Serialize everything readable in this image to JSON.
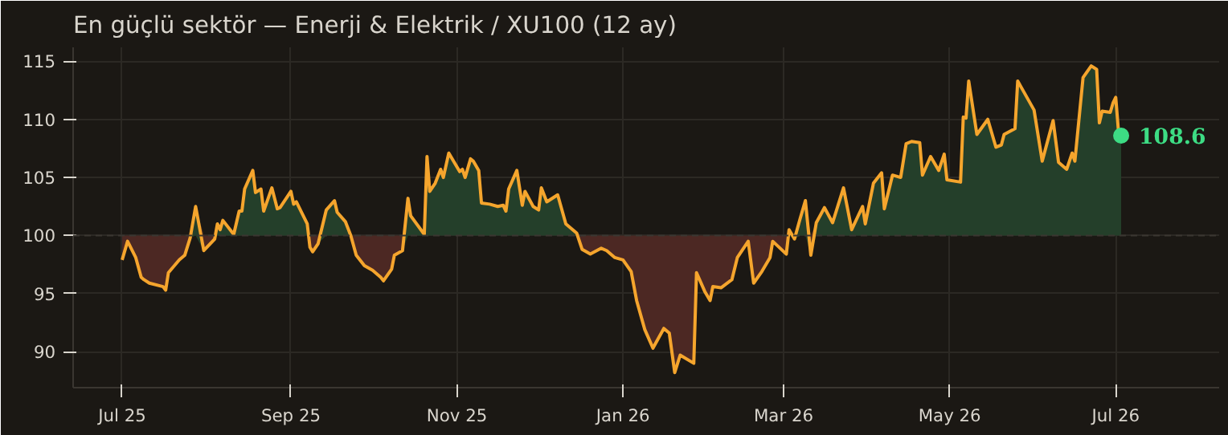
{
  "chart_data": {
    "type": "line",
    "title": "En güçlü sektör — Enerji & Elektrik / XU100 (12 ay)",
    "x": [
      "2025-07-01",
      "2025-07-03",
      "2025-07-06",
      "2025-07-08",
      "2025-07-09",
      "2025-07-11",
      "2025-07-16",
      "2025-07-17",
      "2025-07-18",
      "2025-07-22",
      "2025-07-24",
      "2025-07-26",
      "2025-07-28",
      "2025-07-31",
      "2025-08-04",
      "2025-08-05",
      "2025-08-06",
      "2025-08-07",
      "2025-08-11",
      "2025-08-13",
      "2025-08-14",
      "2025-08-15",
      "2025-08-18",
      "2025-08-19",
      "2025-08-21",
      "2025-08-22",
      "2025-08-25",
      "2025-08-27",
      "2025-08-28",
      "2025-09-01",
      "2025-09-02",
      "2025-09-03",
      "2025-09-07",
      "2025-09-08",
      "2025-09-09",
      "2025-09-11",
      "2025-09-14",
      "2025-09-17",
      "2025-09-18",
      "2025-09-21",
      "2025-09-23",
      "2025-09-25",
      "2025-09-28",
      "2025-10-01",
      "2025-10-04",
      "2025-10-05",
      "2025-10-08",
      "2025-10-09",
      "2025-10-12",
      "2025-10-14",
      "2025-10-15",
      "2025-10-20",
      "2025-10-21",
      "2025-10-22",
      "2025-10-24",
      "2025-10-26",
      "2025-10-27",
      "2025-10-29",
      "2025-11-02",
      "2025-11-03",
      "2025-11-04",
      "2025-11-06",
      "2025-11-07",
      "2025-11-09",
      "2025-11-10",
      "2025-11-13",
      "2025-11-16",
      "2025-11-18",
      "2025-11-19",
      "2025-11-20",
      "2025-11-23",
      "2025-11-25",
      "2025-11-26",
      "2025-11-29",
      "2025-12-01",
      "2025-12-02",
      "2025-12-04",
      "2025-12-08",
      "2025-12-11",
      "2025-12-15",
      "2025-12-17",
      "2025-12-20",
      "2025-12-24",
      "2025-12-26",
      "2025-12-29",
      "2026-01-01",
      "2026-01-04",
      "2026-01-06",
      "2026-01-09",
      "2026-01-12",
      "2026-01-16",
      "2026-01-18",
      "2026-01-20",
      "2026-01-22",
      "2026-01-27",
      "2026-01-28",
      "2026-01-31",
      "2026-02-02",
      "2026-02-03",
      "2026-02-06",
      "2026-02-10",
      "2026-02-12",
      "2026-02-16",
      "2026-02-18",
      "2026-02-21",
      "2026-02-24",
      "2026-02-25",
      "2026-03-02",
      "2026-03-03",
      "2026-03-05",
      "2026-03-07",
      "2026-03-09",
      "2026-03-11",
      "2026-03-13",
      "2026-03-16",
      "2026-03-19",
      "2026-03-23",
      "2026-03-26",
      "2026-03-30",
      "2026-03-31",
      "2026-04-03",
      "2026-04-06",
      "2026-04-07",
      "2026-04-10",
      "2026-04-13",
      "2026-04-15",
      "2026-04-17",
      "2026-04-20",
      "2026-04-21",
      "2026-04-24",
      "2026-04-27",
      "2026-04-29",
      "2026-04-30",
      "2026-05-05",
      "2026-05-06",
      "2026-05-07",
      "2026-05-08",
      "2026-05-11",
      "2026-05-15",
      "2026-05-18",
      "2026-05-20",
      "2026-05-21",
      "2026-05-25",
      "2026-05-26",
      "2026-06-01",
      "2026-06-04",
      "2026-06-08",
      "2026-06-10",
      "2026-06-13",
      "2026-06-15",
      "2026-06-16",
      "2026-06-19",
      "2026-06-22",
      "2026-06-24",
      "2026-06-25",
      "2026-06-26",
      "2026-06-29",
      "2026-06-30",
      "2026-07-01",
      "2026-07-02",
      "2026-07-03"
    ],
    "series": [
      {
        "color": "#f5a52d",
        "lower": [
          97.9,
          99.5,
          98.1,
          96.4,
          96.2,
          95.9,
          95.6,
          95.3,
          96.8,
          97.9,
          98.3,
          99.8,
          100,
          98.7,
          99.7,
          100,
          100,
          100,
          100,
          100,
          100,
          100,
          100,
          100,
          100,
          100,
          100,
          100,
          100,
          100,
          100,
          100,
          100,
          99.0,
          98.6,
          99.3,
          100,
          100,
          100,
          100,
          100.0,
          98.3,
          97.4,
          97.0,
          96.4,
          96.1,
          97.1,
          98.3,
          98.7,
          100,
          100,
          100,
          100,
          100,
          100,
          100,
          100,
          100,
          100,
          100,
          100,
          100,
          100,
          100,
          100,
          100,
          100,
          100,
          100,
          100,
          100,
          100,
          100,
          100,
          100,
          100,
          100,
          100,
          100,
          100,
          98.8,
          98.4,
          98.9,
          98.7,
          98.1,
          97.9,
          96.9,
          94.4,
          91.9,
          90.3,
          92.0,
          91.6,
          88.2,
          89.7,
          89.0,
          96.8,
          95.2,
          94.4,
          95.6,
          95.5,
          96.2,
          98.1,
          99.5,
          95.9,
          96.9,
          98.1,
          99.5,
          98.4,
          100,
          99.7,
          100,
          100,
          98.3,
          100,
          100,
          100,
          100,
          100,
          100,
          100,
          100,
          100,
          100,
          100,
          100,
          100,
          100,
          100,
          100,
          100,
          100,
          100,
          100,
          100,
          100,
          100,
          100,
          100,
          100,
          100,
          100,
          100,
          100,
          100,
          100,
          100,
          100,
          100,
          100,
          100,
          100,
          100,
          100,
          100,
          100,
          100,
          100,
          100,
          100,
          100,
          100
        ],
        "upper": [
          100,
          100,
          100,
          100,
          100,
          100,
          100,
          100,
          100,
          100,
          100,
          100,
          102.5,
          100,
          100,
          101.0,
          100.5,
          101.3,
          100.1,
          102.1,
          102.1,
          104.0,
          105.6,
          103.7,
          104.0,
          102.1,
          104.1,
          102.3,
          102.4,
          103.8,
          102.7,
          102.9,
          101.0,
          100,
          100,
          100,
          102.2,
          103.0,
          102.0,
          101.2,
          100.0,
          100,
          100,
          100,
          100,
          100,
          100,
          100,
          100,
          103.2,
          101.7,
          100.1,
          106.8,
          103.8,
          104.5,
          105.7,
          105.0,
          107.1,
          105.5,
          105.7,
          105.0,
          106.6,
          106.4,
          105.6,
          102.8,
          102.7,
          102.5,
          102.6,
          102.1,
          104.0,
          105.6,
          102.6,
          103.8,
          102.5,
          102.2,
          104.1,
          102.9,
          103.5,
          101.0,
          100.2,
          100,
          100,
          100,
          100,
          100,
          100,
          100,
          100,
          100,
          100,
          100,
          100,
          100,
          100,
          100,
          100,
          100,
          100,
          100,
          100,
          100,
          100,
          100,
          100,
          100,
          100,
          100,
          100,
          100.5,
          100,
          101.4,
          103.0,
          100,
          101.1,
          102.4,
          101.1,
          104.1,
          100.5,
          102.5,
          101.0,
          104.5,
          105.4,
          102.3,
          105.2,
          105.0,
          107.9,
          108.1,
          108.0,
          105.2,
          106.8,
          105.6,
          107.0,
          104.8,
          104.6,
          110.2,
          110.1,
          113.3,
          108.7,
          110.0,
          107.6,
          107.8,
          108.7,
          109.2,
          113.3,
          110.8,
          106.4,
          109.9,
          106.3,
          105.7,
          107.1,
          106.4,
          113.6,
          114.6,
          114.3,
          109.7,
          110.7,
          110.6,
          111.4,
          111.9,
          109.0,
          108.6
        ],
        "values": [
          97.9,
          99.5,
          98.1,
          96.4,
          96.2,
          95.9,
          95.6,
          95.3,
          96.8,
          97.9,
          98.3,
          99.8,
          102.5,
          98.7,
          99.7,
          101.0,
          100.5,
          101.3,
          100.1,
          102.1,
          102.1,
          104.0,
          105.6,
          103.7,
          104.0,
          102.1,
          104.1,
          102.3,
          102.4,
          103.8,
          102.7,
          102.9,
          101.0,
          99.0,
          98.6,
          99.3,
          102.2,
          103.0,
          102.0,
          101.2,
          100.0,
          98.3,
          97.4,
          97.0,
          96.4,
          96.1,
          97.1,
          98.3,
          98.7,
          103.2,
          101.7,
          100.1,
          106.8,
          103.8,
          104.5,
          105.7,
          105.0,
          107.1,
          105.5,
          105.7,
          105.0,
          106.6,
          106.4,
          105.6,
          102.8,
          102.7,
          102.5,
          102.6,
          102.1,
          104.0,
          105.6,
          102.6,
          103.8,
          102.5,
          102.2,
          104.1,
          102.9,
          103.5,
          101.0,
          100.2,
          98.8,
          98.4,
          98.9,
          98.7,
          98.1,
          97.9,
          96.9,
          94.4,
          91.9,
          90.3,
          92.0,
          91.6,
          88.2,
          89.7,
          89.0,
          96.8,
          95.2,
          94.4,
          95.6,
          95.5,
          96.2,
          98.1,
          99.5,
          95.9,
          96.9,
          98.1,
          99.5,
          98.4,
          100.5,
          99.7,
          101.4,
          103.0,
          98.3,
          101.1,
          102.4,
          101.1,
          104.1,
          100.5,
          102.5,
          101.0,
          104.5,
          105.4,
          102.3,
          105.2,
          105.0,
          107.9,
          108.1,
          108.0,
          105.2,
          106.8,
          105.6,
          107.0,
          104.8,
          104.6,
          110.2,
          110.1,
          113.3,
          108.7,
          110.0,
          107.6,
          107.8,
          108.7,
          109.2,
          113.3,
          110.8,
          106.4,
          109.9,
          106.3,
          105.7,
          107.1,
          106.4,
          113.6,
          114.6,
          114.3,
          109.7,
          110.7,
          110.6,
          111.4,
          111.9,
          109.0,
          108.6
        ]
      }
    ],
    "ref_lines": [
      {
        "axis": "y",
        "value": 100,
        "color": "#3a3631",
        "line_style": "dashed"
      }
    ],
    "annotations": [
      {
        "text": "108.6",
        "x": "2026-07-03",
        "y": 108.6
      }
    ],
    "xlim": [
      "2025-06-13",
      "2026-08-08"
    ],
    "xticks": [
      {
        "value": "2025-07-01",
        "label": "Jul 25"
      },
      {
        "value": "2025-09-01",
        "label": "Sep 25"
      },
      {
        "value": "2025-11-01",
        "label": "Nov 25"
      },
      {
        "value": "2026-01-01",
        "label": "Jan 26"
      },
      {
        "value": "2026-03-01",
        "label": "Mar 26"
      },
      {
        "value": "2026-05-01",
        "label": "May 26"
      },
      {
        "value": "2026-07-01",
        "label": "Jul 26"
      }
    ],
    "ylim": [
      86.9,
      116.2
    ],
    "yticks": [
      90,
      95,
      100,
      105,
      110,
      115
    ],
    "grid": true
  }
}
